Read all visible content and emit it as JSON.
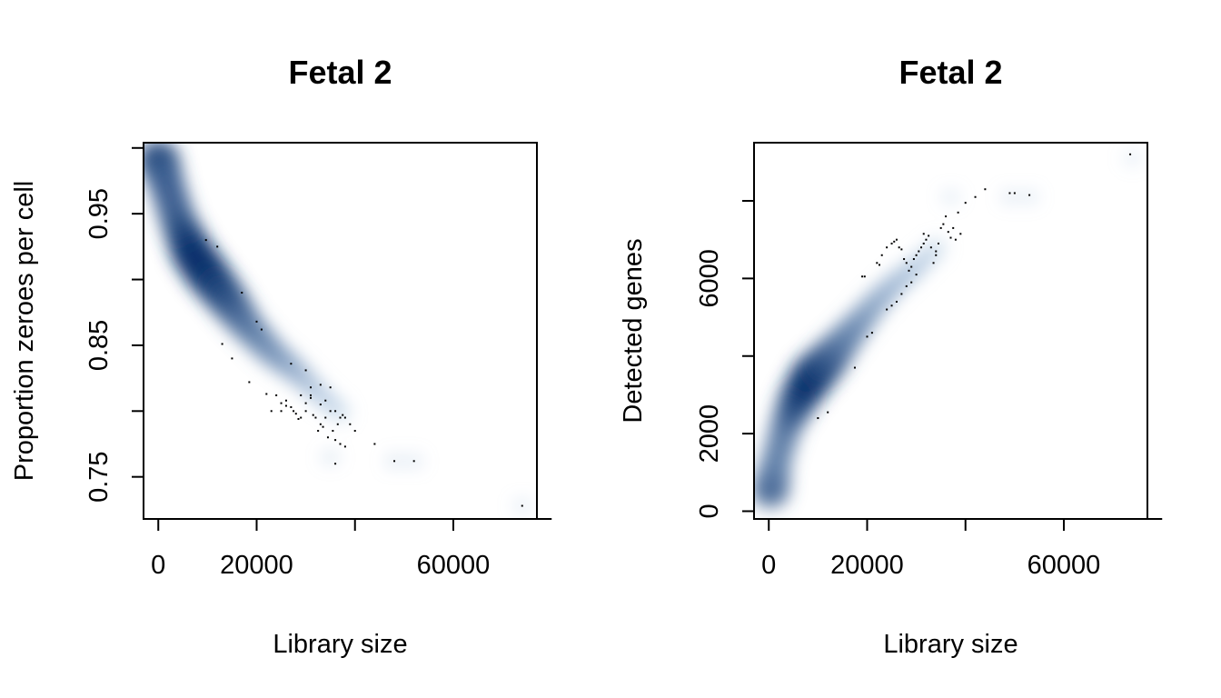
{
  "chart_data": [
    {
      "type": "scatter",
      "style": "smoothScatter density with outlier points",
      "title": "Fetal 2",
      "xlabel": "Library size",
      "ylabel": "Proportion zeroes per cell",
      "xlim": [
        -3000,
        77000
      ],
      "ylim": [
        0.718,
        1.004
      ],
      "xticks": [
        0,
        20000,
        40000,
        60000,
        80000
      ],
      "xtick_labels": [
        "0",
        "20000",
        "",
        "60000",
        ""
      ],
      "yticks": [
        0.75,
        0.8,
        0.85,
        0.9,
        0.95,
        1.0
      ],
      "ytick_labels": [
        "0.75",
        "",
        "0.85",
        "",
        "0.95",
        ""
      ],
      "density_color": "#08306b",
      "density_ridge": {
        "x": [
          0,
          1500,
          4000,
          7000,
          10000,
          14000,
          18000,
          23000,
          28000,
          33000,
          38000
        ],
        "y": [
          0.992,
          0.975,
          0.945,
          0.92,
          0.904,
          0.885,
          0.865,
          0.845,
          0.83,
          0.812,
          0.796
        ]
      },
      "density_weights": [
        0.9,
        0.7,
        0.7,
        0.95,
        1.0,
        0.85,
        0.6,
        0.45,
        0.3,
        0.15,
        0.08
      ],
      "density_blobs": [
        {
          "x": 48000,
          "y": 0.762,
          "w": 0.15
        },
        {
          "x": 52000,
          "y": 0.762,
          "w": 0.12
        },
        {
          "x": 35000,
          "y": 0.765,
          "w": 0.15
        },
        {
          "x": 74000,
          "y": 0.728,
          "w": 0.1
        }
      ],
      "points": {
        "x": [
          9700,
          12000,
          17000,
          20000,
          21000,
          18500,
          15000,
          13000,
          27000,
          30000,
          31000,
          33000,
          34000,
          35000,
          29000,
          31000,
          33000,
          30000,
          22000,
          24000,
          26000,
          25000,
          27000,
          28000,
          29000,
          30000,
          31000,
          32000,
          33000,
          34000,
          35000,
          36000,
          37000,
          38000,
          39000,
          34500,
          36000,
          38000,
          37000,
          35500,
          33500,
          32500,
          36500,
          37500,
          40000,
          44000,
          48000,
          52000,
          36000,
          74000,
          26000,
          27500,
          28500,
          23000,
          25000,
          31500
        ],
        "y": [
          0.93,
          0.925,
          0.89,
          0.868,
          0.862,
          0.822,
          0.84,
          0.851,
          0.836,
          0.831,
          0.818,
          0.82,
          0.808,
          0.818,
          0.812,
          0.812,
          0.805,
          0.806,
          0.813,
          0.812,
          0.808,
          0.8,
          0.803,
          0.798,
          0.795,
          0.8,
          0.81,
          0.795,
          0.79,
          0.795,
          0.8,
          0.8,
          0.795,
          0.795,
          0.79,
          0.78,
          0.778,
          0.773,
          0.775,
          0.785,
          0.788,
          0.785,
          0.79,
          0.797,
          0.785,
          0.775,
          0.762,
          0.762,
          0.76,
          0.728,
          0.804,
          0.8,
          0.794,
          0.8,
          0.806,
          0.797
        ]
      }
    },
    {
      "type": "scatter",
      "style": "smoothScatter density with outlier points",
      "title": "Fetal 2",
      "xlabel": "Library size",
      "ylabel": "Detected genes",
      "xlim": [
        -3000,
        77000
      ],
      "ylim": [
        -200,
        9500
      ],
      "xticks": [
        0,
        20000,
        40000,
        60000,
        80000
      ],
      "xtick_labels": [
        "0",
        "20000",
        "",
        "60000",
        ""
      ],
      "yticks": [
        0,
        2000,
        4000,
        6000,
        8000
      ],
      "ytick_labels": [
        "0",
        "2000",
        "",
        "6000",
        ""
      ],
      "density_color": "#08306b",
      "density_ridge": {
        "x": [
          300,
          1500,
          3500,
          6000,
          9000,
          12000,
          15000,
          18000,
          22000,
          26000,
          30000,
          35000
        ],
        "y": [
          500,
          1300,
          2200,
          2900,
          3500,
          3900,
          4350,
          4800,
          5400,
          5900,
          6300,
          6900
        ]
      },
      "density_weights": [
        0.75,
        0.5,
        0.55,
        0.8,
        1.0,
        0.85,
        0.6,
        0.45,
        0.32,
        0.22,
        0.15,
        0.08
      ],
      "density_blobs": [
        {
          "x": 49000,
          "y": 8100,
          "w": 0.12
        },
        {
          "x": 53000,
          "y": 8100,
          "w": 0.1
        },
        {
          "x": 37000,
          "y": 8100,
          "w": 0.1
        },
        {
          "x": 74000,
          "y": 9100,
          "w": 0.08
        }
      ],
      "points": {
        "x": [
          10000,
          12000,
          17500,
          19000,
          19500,
          20000,
          21000,
          22000,
          22500,
          23000,
          24000,
          25000,
          25500,
          26000,
          26500,
          27000,
          27500,
          28000,
          28500,
          29000,
          29500,
          30000,
          30500,
          31000,
          31500,
          32000,
          32500,
          33000,
          33500,
          34000,
          34500,
          35000,
          35500,
          36000,
          36500,
          37000,
          37500,
          38000,
          38500,
          39000,
          40000,
          42000,
          44000,
          49000,
          50000,
          53000,
          73500,
          24000,
          25000,
          26000,
          27000,
          28000,
          29000,
          30000,
          34000,
          31500
        ],
        "y": [
          2400,
          2550,
          3700,
          6050,
          6050,
          4500,
          4600,
          6400,
          6350,
          6600,
          6800,
          6900,
          6950,
          7000,
          6800,
          6750,
          6500,
          6400,
          6200,
          6300,
          6500,
          6600,
          6700,
          6800,
          6900,
          7000,
          7100,
          6800,
          6400,
          6600,
          6900,
          7300,
          7400,
          7600,
          7200,
          7050,
          7300,
          7000,
          7700,
          7150,
          7950,
          8100,
          8300,
          8200,
          8200,
          8150,
          9200,
          5200,
          5300,
          5400,
          5600,
          5800,
          5900,
          6100,
          6700,
          7150
        ]
      }
    }
  ]
}
